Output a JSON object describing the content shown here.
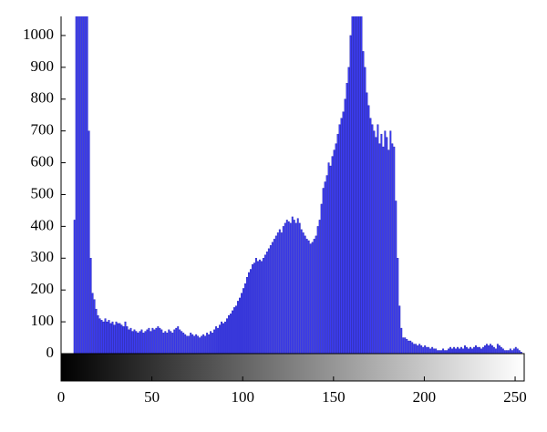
{
  "chart_data": {
    "type": "histogram",
    "color": "#3c3cf5",
    "xlim": [
      0,
      255
    ],
    "xticks": [
      0,
      50,
      100,
      150,
      200,
      250
    ],
    "ylim": [
      0,
      1060
    ],
    "yticks": [
      0,
      100,
      200,
      300,
      400,
      500,
      600,
      700,
      800,
      900,
      1000
    ],
    "gradient_bar": true,
    "bins": [
      0,
      1,
      2,
      3,
      4,
      5,
      6,
      7,
      8,
      9,
      10,
      11,
      12,
      13,
      14,
      15,
      16,
      17,
      18,
      19,
      20,
      21,
      22,
      23,
      24,
      25,
      26,
      27,
      28,
      29,
      30,
      31,
      32,
      33,
      34,
      35,
      36,
      37,
      38,
      39,
      40,
      41,
      42,
      43,
      44,
      45,
      46,
      47,
      48,
      49,
      50,
      51,
      52,
      53,
      54,
      55,
      56,
      57,
      58,
      59,
      60,
      61,
      62,
      63,
      64,
      65,
      66,
      67,
      68,
      69,
      70,
      71,
      72,
      73,
      74,
      75,
      76,
      77,
      78,
      79,
      80,
      81,
      82,
      83,
      84,
      85,
      86,
      87,
      88,
      89,
      90,
      91,
      92,
      93,
      94,
      95,
      96,
      97,
      98,
      99,
      100,
      101,
      102,
      103,
      104,
      105,
      106,
      107,
      108,
      109,
      110,
      111,
      112,
      113,
      114,
      115,
      116,
      117,
      118,
      119,
      120,
      121,
      122,
      123,
      124,
      125,
      126,
      127,
      128,
      129,
      130,
      131,
      132,
      133,
      134,
      135,
      136,
      137,
      138,
      139,
      140,
      141,
      142,
      143,
      144,
      145,
      146,
      147,
      148,
      149,
      150,
      151,
      152,
      153,
      154,
      155,
      156,
      157,
      158,
      159,
      160,
      161,
      162,
      163,
      164,
      165,
      166,
      167,
      168,
      169,
      170,
      171,
      172,
      173,
      174,
      175,
      176,
      177,
      178,
      179,
      180,
      181,
      182,
      183,
      184,
      185,
      186,
      187,
      188,
      189,
      190,
      191,
      192,
      193,
      194,
      195,
      196,
      197,
      198,
      199,
      200,
      201,
      202,
      203,
      204,
      205,
      206,
      207,
      208,
      209,
      210,
      211,
      212,
      213,
      214,
      215,
      216,
      217,
      218,
      219,
      220,
      221,
      222,
      223,
      224,
      225,
      226,
      227,
      228,
      229,
      230,
      231,
      232,
      233,
      234,
      235,
      236,
      237,
      238,
      239,
      240,
      241,
      242,
      243,
      244,
      245,
      246,
      247,
      248,
      249,
      250,
      251,
      252,
      253,
      254,
      255,
      256
    ],
    "counts": [
      0,
      0,
      0,
      0,
      0,
      0,
      0,
      420,
      1100,
      1100,
      1100,
      1100,
      1100,
      1100,
      1100,
      700,
      300,
      190,
      170,
      140,
      120,
      110,
      105,
      100,
      110,
      100,
      105,
      95,
      100,
      90,
      100,
      95,
      95,
      90,
      85,
      100,
      85,
      75,
      80,
      70,
      75,
      70,
      65,
      70,
      75,
      65,
      70,
      75,
      80,
      70,
      80,
      75,
      80,
      85,
      80,
      75,
      65,
      70,
      65,
      75,
      70,
      65,
      75,
      80,
      85,
      75,
      70,
      65,
      60,
      55,
      55,
      65,
      60,
      55,
      60,
      55,
      50,
      55,
      60,
      55,
      65,
      60,
      70,
      65,
      75,
      85,
      80,
      90,
      100,
      95,
      100,
      110,
      120,
      125,
      135,
      145,
      150,
      165,
      175,
      190,
      205,
      220,
      240,
      255,
      265,
      280,
      285,
      300,
      290,
      295,
      290,
      300,
      310,
      320,
      330,
      340,
      350,
      360,
      370,
      380,
      390,
      380,
      400,
      410,
      420,
      415,
      410,
      430,
      420,
      410,
      425,
      410,
      390,
      380,
      370,
      360,
      355,
      345,
      350,
      360,
      370,
      400,
      420,
      470,
      520,
      540,
      560,
      600,
      590,
      620,
      640,
      660,
      690,
      720,
      740,
      760,
      800,
      850,
      900,
      1000,
      1100,
      1100,
      1100,
      1100,
      1100,
      1100,
      950,
      900,
      820,
      780,
      740,
      720,
      700,
      680,
      720,
      660,
      690,
      650,
      700,
      680,
      640,
      700,
      660,
      650,
      480,
      300,
      150,
      80,
      50,
      50,
      45,
      40,
      40,
      35,
      30,
      30,
      25,
      30,
      25,
      20,
      25,
      20,
      20,
      15,
      20,
      15,
      15,
      10,
      10,
      10,
      15,
      10,
      10,
      15,
      20,
      15,
      20,
      15,
      20,
      15,
      20,
      15,
      25,
      20,
      15,
      20,
      15,
      20,
      25,
      20,
      20,
      15,
      20,
      25,
      30,
      25,
      30,
      25,
      20,
      15,
      30,
      25,
      20,
      15,
      10,
      10,
      10,
      15,
      10,
      15,
      20,
      15,
      10,
      5,
      0,
      0
    ]
  }
}
